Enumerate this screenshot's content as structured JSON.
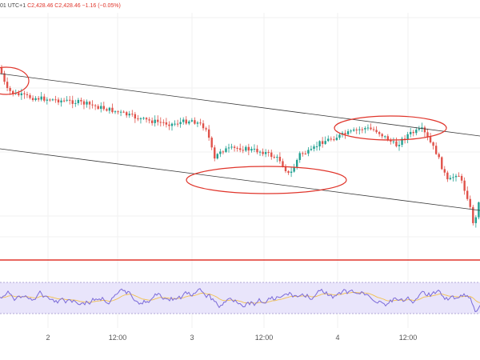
{
  "header": {
    "prefix": "01 UTC+1",
    "values": "C2,428.46  C2,428.46  −1.16 (−0.05%)"
  },
  "colors": {
    "up": "#22a091",
    "down": "#e0524a",
    "channel": "#3a3a3a",
    "ellipse": "#e0352b",
    "support": "#e0352b",
    "rsi": "#7b6ad8",
    "rsi_ma": "#f2c14e",
    "rsi_band": "#e9e5fb"
  },
  "chart_data": [
    {
      "type": "candlestick",
      "x_tick_labels": [
        "2",
        "12:00",
        "3",
        "12:00",
        "4",
        "12:00"
      ],
      "annotations": [
        "descending channel",
        "touch ellipses"
      ]
    },
    {
      "type": "line",
      "name": "RSI"
    }
  ]
}
